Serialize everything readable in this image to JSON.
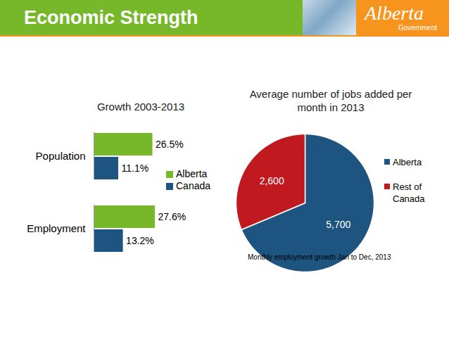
{
  "header": {
    "title": "Economic Strength",
    "logo": "Alberta",
    "logo_subtitle": "Government"
  },
  "chart_data": [
    {
      "type": "bar",
      "title": "Growth 2003-2013",
      "orientation": "horizontal",
      "categories": [
        "Population",
        "Employment"
      ],
      "series": [
        {
          "name": "Alberta",
          "color": "#76b82a",
          "values": [
            26.5,
            27.6
          ],
          "value_labels": [
            "26.5%",
            "27.6%"
          ]
        },
        {
          "name": "Canada",
          "color": "#1d5480",
          "values": [
            11.1,
            13.2
          ],
          "value_labels": [
            "11.1%",
            "13.2%"
          ]
        }
      ],
      "data_labels": true,
      "tick_labels": "y",
      "legend": "right"
    },
    {
      "type": "pie",
      "title": "Average number of jobs added per month in 2013",
      "categories": [
        "Alberta",
        "Rest of Canada"
      ],
      "values": [
        5700,
        2600
      ],
      "value_labels": [
        "5,700",
        "2,600"
      ],
      "colors": [
        "#1d5480",
        "#c0191f"
      ],
      "data_labels": true,
      "legend": "right",
      "caption": "Monthly employment growth Jan to Dec, 2013"
    }
  ]
}
